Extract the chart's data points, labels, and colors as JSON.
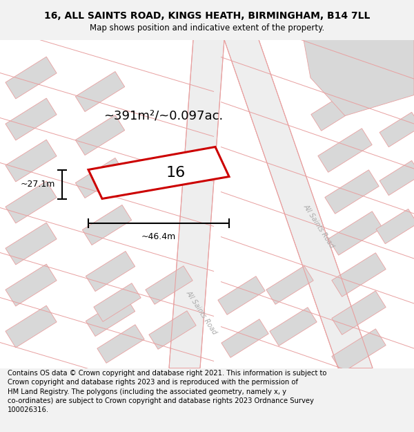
{
  "title": "16, ALL SAINTS ROAD, KINGS HEATH, BIRMINGHAM, B14 7LL",
  "subtitle": "Map shows position and indicative extent of the property.",
  "footer": "Contains OS data © Crown copyright and database right 2021. This information is subject to\nCrown copyright and database rights 2023 and is reproduced with the permission of\nHM Land Registry. The polygons (including the associated geometry, namely x, y\nco-ordinates) are subject to Crown copyright and database rights 2023 Ordnance Survey\n100026316.",
  "area_label": "~391m²/~0.097ac.",
  "width_label": "~46.4m",
  "height_label": "~27.1m",
  "property_number": "16",
  "bg_color": "#f2f2f2",
  "map_bg": "#ffffff",
  "building_fill": "#d8d8d8",
  "road_line_color": "#e8a0a0",
  "building_line_color": "#e8a0a0",
  "highlight_color": "#cc0000",
  "title_fontsize": 10,
  "subtitle_fontsize": 8.5,
  "footer_fontsize": 7.2,
  "area_fontsize": 13,
  "dim_fontsize": 9,
  "num_fontsize": 16,
  "road_label_fontsize": 7
}
